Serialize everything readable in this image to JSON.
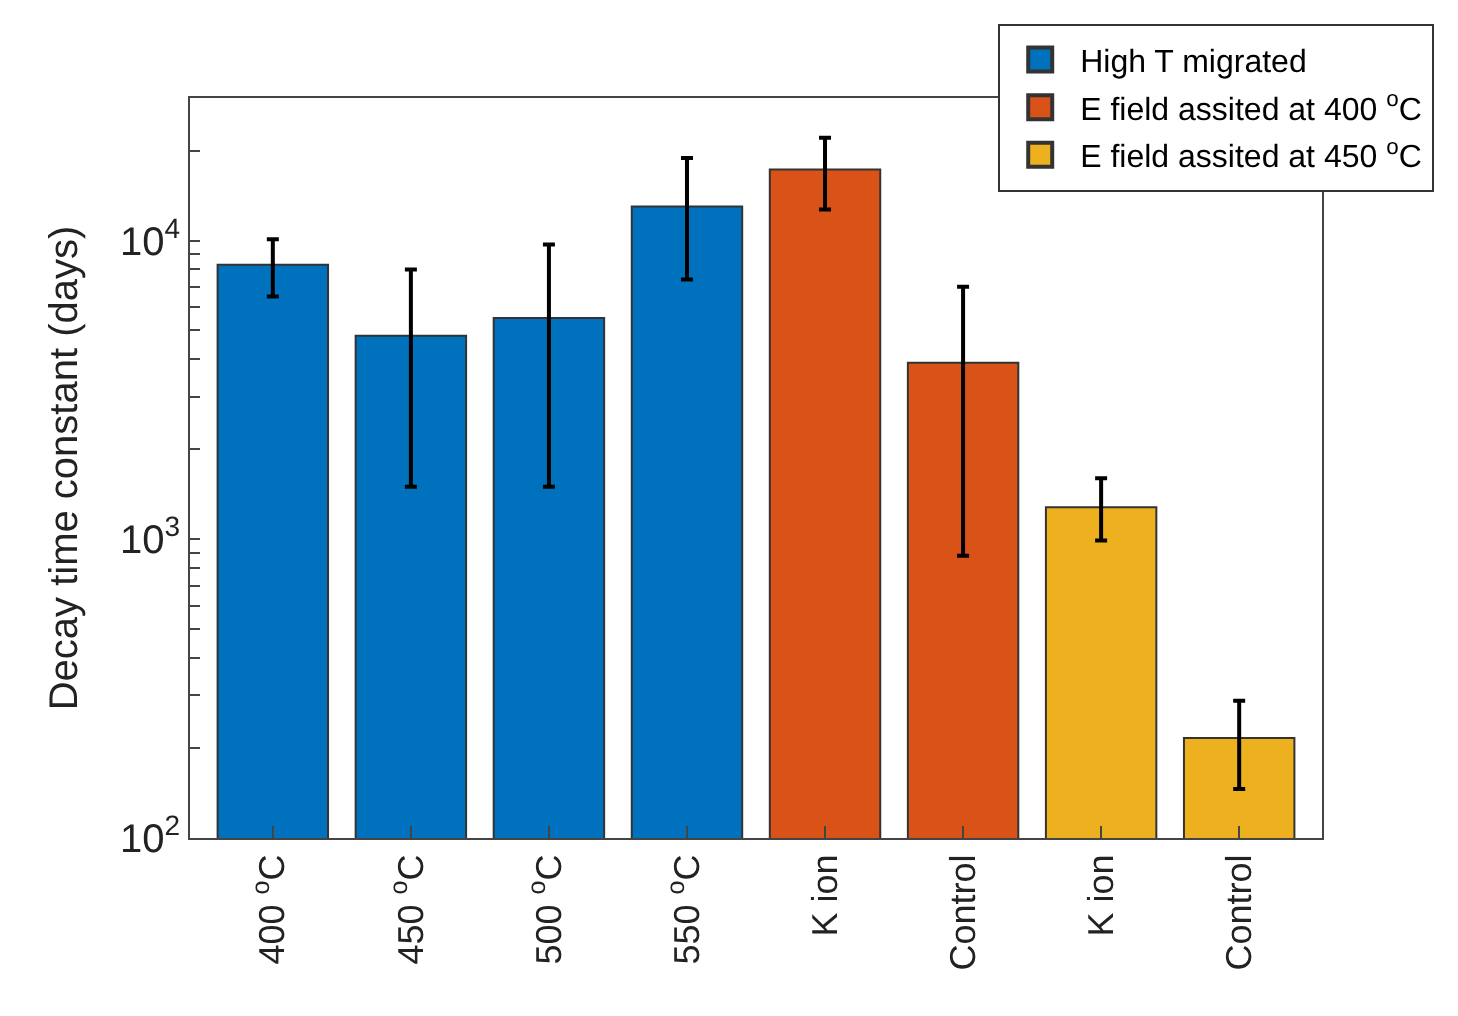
{
  "chart_data": {
    "type": "bar",
    "ylabel": "Decay time constant (days)",
    "categories": [
      "400 $^{o}$C",
      "450 $^{o}$C",
      "500 $^{o}$C",
      "550 $^{o}$C",
      "K ion",
      "Control",
      "K ion",
      "Control"
    ],
    "series": [
      {
        "name": "High T migrated",
        "color": "#0072bd",
        "values": [
          8300,
          4800,
          5500,
          13000,
          null,
          null,
          null,
          null
        ],
        "errors": [
          [
            6500,
            10100
          ],
          [
            1500,
            8000
          ],
          [
            1500,
            9700
          ],
          [
            7400,
            18900
          ],
          null,
          null,
          null,
          null
        ]
      },
      {
        "name": "E field assited at 400 $^{o}$C",
        "color": "#d95319",
        "values": [
          null,
          null,
          null,
          null,
          17300,
          3900,
          null,
          null
        ],
        "errors": [
          null,
          null,
          null,
          null,
          [
            12700,
            22100
          ],
          [
            880,
            7000
          ],
          null,
          null
        ]
      },
      {
        "name": "E field assited at 450 $^{o}$C",
        "color": "#edb120",
        "values": [
          null,
          null,
          null,
          null,
          null,
          null,
          1280,
          216
        ],
        "errors": [
          null,
          null,
          null,
          null,
          null,
          null,
          [
            990,
            1600
          ],
          [
            146,
            288
          ]
        ]
      }
    ],
    "log": true,
    "ylim": [
      100,
      30000
    ],
    "yticks": [
      {
        "value": 100,
        "label": "10$^{2}$"
      },
      {
        "value": 200,
        "label": null
      },
      {
        "value": 300,
        "label": null
      },
      {
        "value": 400,
        "label": null
      },
      {
        "value": 500,
        "label": null
      },
      {
        "value": 600,
        "label": null
      },
      {
        "value": 700,
        "label": null
      },
      {
        "value": 800,
        "label": null
      },
      {
        "value": 900,
        "label": null
      },
      {
        "value": 1000,
        "label": "10$^{3}$"
      },
      {
        "value": 2000,
        "label": null
      },
      {
        "value": 3000,
        "label": null
      },
      {
        "value": 4000,
        "label": null
      },
      {
        "value": 5000,
        "label": null
      },
      {
        "value": 6000,
        "label": null
      },
      {
        "value": 7000,
        "label": null
      },
      {
        "value": 8000,
        "label": null
      },
      {
        "value": 9000,
        "label": null
      },
      {
        "value": 10000,
        "label": "10$^{4}$"
      },
      {
        "value": 20000,
        "label": null
      },
      {
        "value": 30000,
        "label": null
      }
    ],
    "legend": "top right"
  }
}
